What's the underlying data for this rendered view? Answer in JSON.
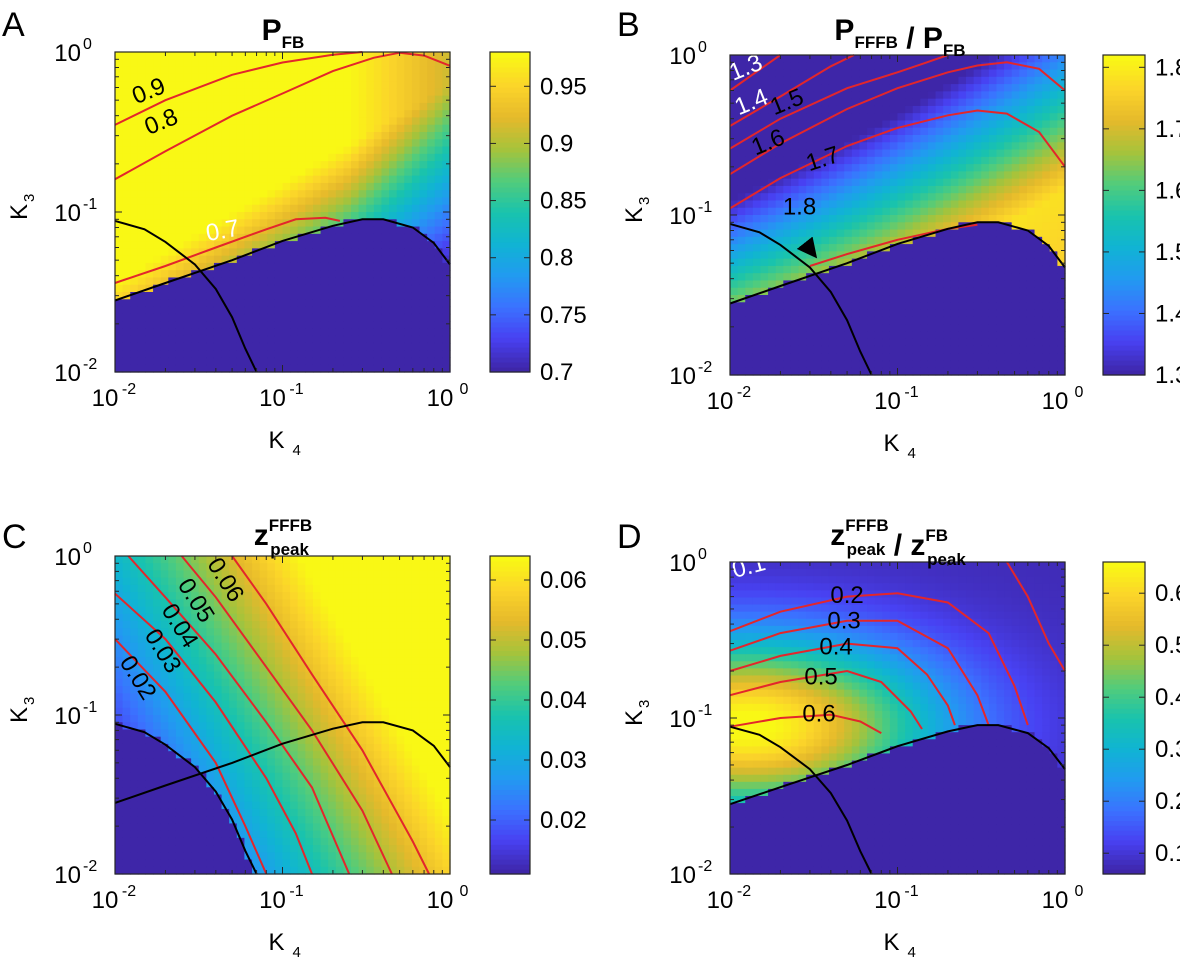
{
  "colors": {
    "contour": "#e3262b",
    "boundary": "#000000",
    "label_dark": "#000000",
    "label_light": "#ffffff",
    "colormap": [
      "#3e26a8",
      "#4841f2",
      "#3b72ff",
      "#219bf0",
      "#10b4d3",
      "#19c3ad",
      "#52cc7b",
      "#a6c33b",
      "#e5b92b",
      "#fbd42a",
      "#f9f815"
    ]
  },
  "chart_data": [
    {
      "panel_label": "A",
      "type": "heatmap",
      "title_main": "P",
      "title_sub": "FB",
      "xlabel_main": "K",
      "xlabel_sub": "4",
      "ylabel_main": "K",
      "ylabel_sub": "3",
      "x_scale": "log",
      "y_scale": "log",
      "xlim": [
        0.01,
        1
      ],
      "ylim": [
        0.01,
        1
      ],
      "xtick_exps": [
        "-2",
        "-1",
        "0"
      ],
      "ytick_exps": [
        "-2",
        "-1",
        "0"
      ],
      "colorbar": {
        "range": [
          0.7,
          0.98
        ],
        "ticks": [
          "0.7",
          "0.75",
          "0.8",
          "0.85",
          "0.9",
          "0.95"
        ]
      },
      "contour_levels": [
        "0.9",
        "0.8",
        "0.7"
      ],
      "contour_lines": [
        [
          [
            0.01,
            0.35
          ],
          [
            0.02,
            0.5
          ],
          [
            0.05,
            0.72
          ],
          [
            0.1,
            0.86
          ],
          [
            0.2,
            0.96
          ],
          [
            0.3,
            1.0
          ]
        ],
        [
          [
            0.01,
            0.16
          ],
          [
            0.02,
            0.24
          ],
          [
            0.05,
            0.4
          ],
          [
            0.1,
            0.55
          ],
          [
            0.2,
            0.76
          ],
          [
            0.35,
            0.92
          ],
          [
            0.5,
            0.99
          ],
          [
            0.7,
            0.95
          ],
          [
            1.0,
            0.82
          ]
        ],
        [
          [
            0.01,
            0.036
          ],
          [
            0.02,
            0.046
          ],
          [
            0.04,
            0.06
          ],
          [
            0.08,
            0.078
          ],
          [
            0.12,
            0.09
          ],
          [
            0.18,
            0.092
          ],
          [
            0.22,
            0.088
          ]
        ]
      ],
      "contour_labels": [
        {
          "text": "0.9",
          "x": 0.016,
          "y": 0.56,
          "angle": -22,
          "color": "dark"
        },
        {
          "text": "0.8",
          "x": 0.019,
          "y": 0.36,
          "angle": -22,
          "color": "dark"
        },
        {
          "text": "0.7",
          "x": 0.044,
          "y": 0.075,
          "angle": -10,
          "color": "light"
        }
      ],
      "boundary_lines": [
        [
          [
            0.01,
            0.028
          ],
          [
            0.02,
            0.036
          ],
          [
            0.05,
            0.05
          ],
          [
            0.1,
            0.066
          ],
          [
            0.2,
            0.082
          ],
          [
            0.3,
            0.09
          ],
          [
            0.4,
            0.09
          ],
          [
            0.6,
            0.08
          ],
          [
            0.8,
            0.064
          ],
          [
            1.0,
            0.047
          ]
        ],
        [
          [
            0.01,
            0.088
          ],
          [
            0.015,
            0.078
          ],
          [
            0.02,
            0.065
          ],
          [
            0.03,
            0.047
          ],
          [
            0.04,
            0.033
          ],
          [
            0.05,
            0.022
          ],
          [
            0.06,
            0.014
          ],
          [
            0.07,
            0.01
          ]
        ]
      ],
      "arrow": null
    },
    {
      "panel_label": "B",
      "type": "heatmap",
      "title_main": "P",
      "title_sub": "FFFB",
      "title2_main": "P",
      "title2_sub": "FB",
      "xlabel_main": "K",
      "xlabel_sub": "4",
      "ylabel_main": "K",
      "ylabel_sub": "3",
      "x_scale": "log",
      "y_scale": "log",
      "xlim": [
        0.01,
        1
      ],
      "ylim": [
        0.01,
        1
      ],
      "xtick_exps": [
        "-2",
        "-1",
        "0"
      ],
      "ytick_exps": [
        "-2",
        "-1",
        "0"
      ],
      "colorbar": {
        "range": [
          1.3,
          1.82
        ],
        "ticks": [
          "1.3",
          "1.4",
          "1.5",
          "1.6",
          "1.7",
          "1.8"
        ]
      },
      "contour_levels": [
        "1.3",
        "1.4",
        "1.5",
        "1.6",
        "1.7",
        "1.8"
      ],
      "contour_lines": [
        [
          [
            0.01,
            0.6
          ],
          [
            0.02,
            1.0
          ]
        ],
        [
          [
            0.01,
            0.36
          ],
          [
            0.02,
            0.55
          ],
          [
            0.04,
            0.85
          ],
          [
            0.055,
            1.0
          ]
        ],
        [
          [
            0.01,
            0.26
          ],
          [
            0.02,
            0.4
          ],
          [
            0.05,
            0.62
          ],
          [
            0.1,
            0.78
          ],
          [
            0.15,
            0.9
          ],
          [
            0.2,
            1.0
          ]
        ],
        [
          [
            0.01,
            0.18
          ],
          [
            0.02,
            0.28
          ],
          [
            0.05,
            0.46
          ],
          [
            0.1,
            0.62
          ],
          [
            0.2,
            0.78
          ],
          [
            0.3,
            0.86
          ],
          [
            0.45,
            0.9
          ],
          [
            0.7,
            0.82
          ],
          [
            1.0,
            0.6
          ]
        ],
        [
          [
            0.01,
            0.11
          ],
          [
            0.02,
            0.17
          ],
          [
            0.05,
            0.27
          ],
          [
            0.1,
            0.35
          ],
          [
            0.2,
            0.42
          ],
          [
            0.3,
            0.45
          ],
          [
            0.45,
            0.43
          ],
          [
            0.7,
            0.33
          ],
          [
            1.0,
            0.2
          ]
        ],
        [
          [
            0.03,
            0.048
          ],
          [
            0.05,
            0.057
          ],
          [
            0.1,
            0.07
          ],
          [
            0.2,
            0.082
          ],
          [
            0.3,
            0.087
          ]
        ]
      ],
      "contour_labels": [
        {
          "text": "1.3",
          "x": 0.0125,
          "y": 0.82,
          "angle": -22,
          "color": "light"
        },
        {
          "text": "1.4",
          "x": 0.0135,
          "y": 0.5,
          "angle": -22,
          "color": "light"
        },
        {
          "text": "1.5",
          "x": 0.022,
          "y": 0.5,
          "angle": -22,
          "color": "dark"
        },
        {
          "text": "1.6",
          "x": 0.017,
          "y": 0.28,
          "angle": -22,
          "color": "dark"
        },
        {
          "text": "1.7",
          "x": 0.036,
          "y": 0.22,
          "angle": -18,
          "color": "dark"
        },
        {
          "text": "1.8",
          "x": 0.026,
          "y": 0.11,
          "angle": 0,
          "color": "dark"
        }
      ],
      "boundary_lines": [
        [
          [
            0.01,
            0.028
          ],
          [
            0.02,
            0.036
          ],
          [
            0.05,
            0.05
          ],
          [
            0.1,
            0.066
          ],
          [
            0.2,
            0.082
          ],
          [
            0.3,
            0.09
          ],
          [
            0.4,
            0.09
          ],
          [
            0.6,
            0.08
          ],
          [
            0.8,
            0.064
          ],
          [
            1.0,
            0.047
          ]
        ],
        [
          [
            0.01,
            0.088
          ],
          [
            0.015,
            0.078
          ],
          [
            0.02,
            0.065
          ],
          [
            0.03,
            0.047
          ],
          [
            0.04,
            0.033
          ],
          [
            0.05,
            0.022
          ],
          [
            0.06,
            0.014
          ],
          [
            0.07,
            0.01
          ]
        ]
      ],
      "arrow": {
        "from": [
          0.028,
          0.075
        ],
        "to": [
          0.032,
          0.056
        ]
      }
    },
    {
      "panel_label": "C",
      "type": "heatmap",
      "title_main": "z",
      "title_sup": "FFFB",
      "title_sub": "peak",
      "xlabel_main": "K",
      "xlabel_sub": "4",
      "ylabel_main": "K",
      "ylabel_sub": "3",
      "x_scale": "log",
      "y_scale": "log",
      "xlim": [
        0.01,
        1
      ],
      "ylim": [
        0.01,
        1
      ],
      "xtick_exps": [
        "-2",
        "-1",
        "0"
      ],
      "ytick_exps": [
        "-2",
        "-1",
        "0"
      ],
      "colorbar": {
        "range": [
          0.011,
          0.064
        ],
        "ticks": [
          "0.02",
          "0.03",
          "0.04",
          "0.05",
          "0.06"
        ]
      },
      "contour_levels": [
        "0.02",
        "0.03",
        "0.04",
        "0.05",
        "0.06"
      ],
      "contour_lines": [
        [
          [
            0.01,
            0.3
          ],
          [
            0.02,
            0.14
          ],
          [
            0.04,
            0.05
          ],
          [
            0.06,
            0.02
          ],
          [
            0.08,
            0.01
          ]
        ],
        [
          [
            0.01,
            0.58
          ],
          [
            0.02,
            0.3
          ],
          [
            0.04,
            0.12
          ],
          [
            0.08,
            0.04
          ],
          [
            0.12,
            0.018
          ],
          [
            0.15,
            0.01
          ]
        ],
        [
          [
            0.012,
            1.0
          ],
          [
            0.02,
            0.55
          ],
          [
            0.04,
            0.24
          ],
          [
            0.08,
            0.09
          ],
          [
            0.15,
            0.035
          ],
          [
            0.25,
            0.01
          ]
        ],
        [
          [
            0.025,
            1.0
          ],
          [
            0.04,
            0.55
          ],
          [
            0.08,
            0.2
          ],
          [
            0.15,
            0.08
          ],
          [
            0.3,
            0.025
          ],
          [
            0.45,
            0.01
          ]
        ],
        [
          [
            0.05,
            1.0
          ],
          [
            0.08,
            0.5
          ],
          [
            0.15,
            0.18
          ],
          [
            0.3,
            0.06
          ],
          [
            0.6,
            0.016
          ],
          [
            0.75,
            0.01
          ]
        ]
      ],
      "contour_labels": [
        {
          "text": "0.02",
          "x": 0.0135,
          "y": 0.17,
          "angle": 58,
          "color": "dark"
        },
        {
          "text": "0.03",
          "x": 0.019,
          "y": 0.25,
          "angle": 58,
          "color": "dark"
        },
        {
          "text": "0.04",
          "x": 0.024,
          "y": 0.36,
          "angle": 58,
          "color": "dark"
        },
        {
          "text": "0.05",
          "x": 0.03,
          "y": 0.52,
          "angle": 58,
          "color": "dark"
        },
        {
          "text": "0.06",
          "x": 0.045,
          "y": 0.7,
          "angle": 58,
          "color": "dark"
        }
      ],
      "boundary_lines": [
        [
          [
            0.01,
            0.028
          ],
          [
            0.02,
            0.036
          ],
          [
            0.05,
            0.05
          ],
          [
            0.1,
            0.066
          ],
          [
            0.2,
            0.082
          ],
          [
            0.3,
            0.09
          ],
          [
            0.4,
            0.09
          ],
          [
            0.6,
            0.08
          ],
          [
            0.8,
            0.064
          ],
          [
            1.0,
            0.047
          ]
        ],
        [
          [
            0.01,
            0.088
          ],
          [
            0.015,
            0.078
          ],
          [
            0.02,
            0.065
          ],
          [
            0.03,
            0.047
          ],
          [
            0.04,
            0.033
          ],
          [
            0.05,
            0.022
          ],
          [
            0.06,
            0.014
          ],
          [
            0.07,
            0.01
          ]
        ]
      ],
      "arrow": null
    },
    {
      "panel_label": "D",
      "type": "heatmap",
      "title_main": "z",
      "title_sup": "FFFB",
      "title_sub": "peak",
      "title2_main": "z",
      "title2_sup": "FB",
      "title2_sub": "peak",
      "xlabel_main": "K",
      "xlabel_sub": "4",
      "ylabel_main": "K",
      "ylabel_sub": "3",
      "x_scale": "log",
      "y_scale": "log",
      "xlim": [
        0.01,
        1
      ],
      "ylim": [
        0.01,
        1
      ],
      "xtick_exps": [
        "-2",
        "-1",
        "0"
      ],
      "ytick_exps": [
        "-2",
        "-1",
        "0"
      ],
      "colorbar": {
        "range": [
          0.06,
          0.66
        ],
        "ticks": [
          "0.1",
          "0.2",
          "0.3",
          "0.4",
          "0.5",
          "0.6"
        ]
      },
      "contour_levels": [
        "0.1",
        "0.2",
        "0.3",
        "0.4",
        "0.5",
        "0.6"
      ],
      "contour_lines": [
        [
          [
            0.45,
            1.0
          ],
          [
            0.6,
            0.6
          ],
          [
            0.8,
            0.3
          ],
          [
            1.0,
            0.2
          ]
        ],
        [
          [
            0.01,
            0.36
          ],
          [
            0.02,
            0.48
          ],
          [
            0.05,
            0.6
          ],
          [
            0.1,
            0.63
          ],
          [
            0.2,
            0.55
          ],
          [
            0.35,
            0.35
          ],
          [
            0.5,
            0.16
          ],
          [
            0.6,
            0.09
          ]
        ],
        [
          [
            0.01,
            0.27
          ],
          [
            0.02,
            0.35
          ],
          [
            0.05,
            0.42
          ],
          [
            0.1,
            0.42
          ],
          [
            0.2,
            0.28
          ],
          [
            0.3,
            0.14
          ],
          [
            0.35,
            0.09
          ]
        ],
        [
          [
            0.01,
            0.2
          ],
          [
            0.02,
            0.25
          ],
          [
            0.05,
            0.3
          ],
          [
            0.1,
            0.28
          ],
          [
            0.15,
            0.19
          ],
          [
            0.2,
            0.12
          ],
          [
            0.22,
            0.09
          ]
        ],
        [
          [
            0.01,
            0.14
          ],
          [
            0.02,
            0.17
          ],
          [
            0.05,
            0.2
          ],
          [
            0.08,
            0.17
          ],
          [
            0.12,
            0.11
          ],
          [
            0.14,
            0.085
          ]
        ],
        [
          [
            0.01,
            0.088
          ],
          [
            0.02,
            0.1
          ],
          [
            0.04,
            0.105
          ],
          [
            0.06,
            0.095
          ],
          [
            0.08,
            0.08
          ]
        ]
      ],
      "contour_labels": [
        {
          "text": "0.1",
          "x": 0.013,
          "y": 0.92,
          "angle": -15,
          "color": "light"
        },
        {
          "text": "0.2",
          "x": 0.05,
          "y": 0.6,
          "angle": 0,
          "color": "dark"
        },
        {
          "text": "0.3",
          "x": 0.048,
          "y": 0.41,
          "angle": 0,
          "color": "dark"
        },
        {
          "text": "0.4",
          "x": 0.043,
          "y": 0.28,
          "angle": 0,
          "color": "dark"
        },
        {
          "text": "0.5",
          "x": 0.035,
          "y": 0.18,
          "angle": 0,
          "color": "dark"
        },
        {
          "text": "0.6",
          "x": 0.034,
          "y": 0.104,
          "angle": 0,
          "color": "dark"
        }
      ],
      "boundary_lines": [
        [
          [
            0.01,
            0.028
          ],
          [
            0.02,
            0.036
          ],
          [
            0.05,
            0.05
          ],
          [
            0.1,
            0.066
          ],
          [
            0.2,
            0.082
          ],
          [
            0.3,
            0.09
          ],
          [
            0.4,
            0.09
          ],
          [
            0.6,
            0.08
          ],
          [
            0.8,
            0.064
          ],
          [
            1.0,
            0.047
          ]
        ],
        [
          [
            0.01,
            0.088
          ],
          [
            0.015,
            0.078
          ],
          [
            0.02,
            0.065
          ],
          [
            0.03,
            0.047
          ],
          [
            0.04,
            0.033
          ],
          [
            0.05,
            0.022
          ],
          [
            0.06,
            0.014
          ],
          [
            0.07,
            0.01
          ]
        ]
      ],
      "arrow": null
    }
  ]
}
